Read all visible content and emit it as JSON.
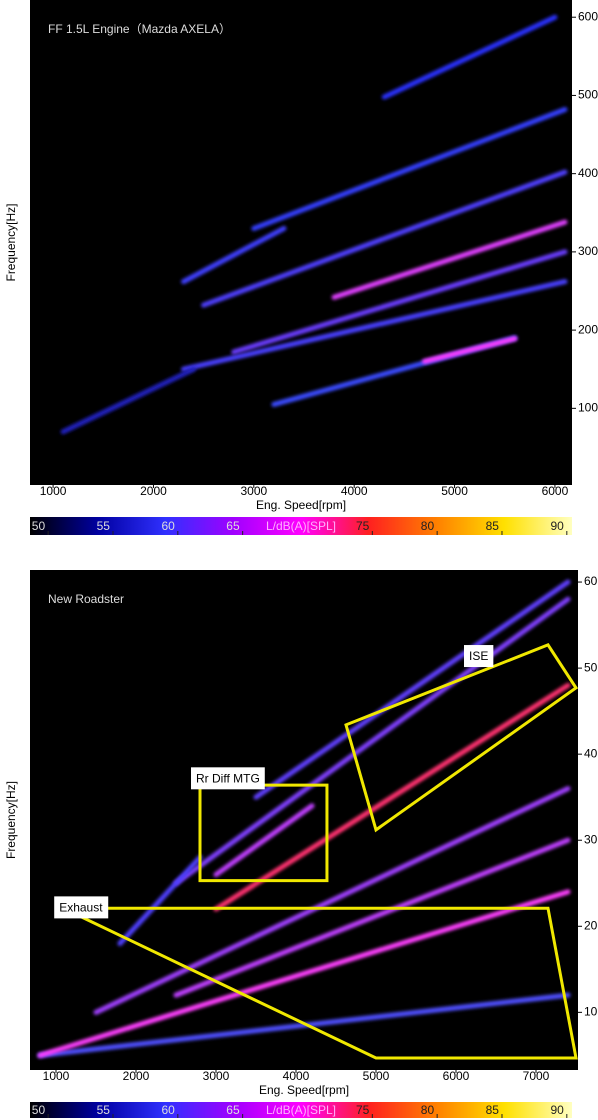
{
  "chart_data": [
    {
      "type": "spectrogram",
      "title": "FF 1.5L Engine（Mazda AXELA）",
      "xlabel": "Eng. Speed[rpm]",
      "ylabel": "Frequency[Hz]",
      "xlim": [
        770,
        6170
      ],
      "ylim": [
        2,
        622
      ],
      "xticks": [
        1000,
        2000,
        3000,
        4000,
        5000,
        6000
      ],
      "yticks": [
        100,
        200,
        300,
        400,
        500,
        600
      ],
      "series": [
        {
          "x": [
            3200,
            5600
          ],
          "values": [
            105,
            190
          ],
          "color": "#3a4cff"
        },
        {
          "x": [
            4700,
            5600
          ],
          "values": [
            160,
            189
          ],
          "color": "#ff3cff"
        },
        {
          "x": [
            2300,
            6100
          ],
          "values": [
            150,
            262
          ],
          "color": "#4a40ff"
        },
        {
          "x": [
            2800,
            6100
          ],
          "values": [
            172,
            300
          ],
          "color": "#6a3cff"
        },
        {
          "x": [
            3800,
            6100
          ],
          "values": [
            242,
            338
          ],
          "color": "#e040ff"
        },
        {
          "x": [
            2500,
            6100
          ],
          "values": [
            232,
            402
          ],
          "color": "#5040ff"
        },
        {
          "x": [
            3000,
            6100
          ],
          "values": [
            330,
            482
          ],
          "color": "#3440ff"
        },
        {
          "x": [
            4300,
            6000
          ],
          "values": [
            498,
            600
          ],
          "color": "#2a30ff"
        },
        {
          "x": [
            2300,
            3300
          ],
          "values": [
            262,
            330
          ],
          "color": "#4040ff"
        },
        {
          "x": [
            1100,
            2400
          ],
          "values": [
            70,
            150
          ],
          "color": "#2020c0"
        }
      ],
      "colorbar": {
        "clim": [
          48.6,
          90.4
        ],
        "ticks": [
          50,
          55,
          60,
          65,
          75,
          80,
          85,
          90
        ],
        "label": "L/dB(A)[SPL]",
        "colors": [
          "#000000",
          "#0000a0",
          "#3030ff",
          "#a000ff",
          "#ff00ff",
          "#ff2020",
          "#ff8000",
          "#ffe000",
          "#ffffc0"
        ]
      }
    },
    {
      "type": "spectrogram",
      "title": "New Roadster",
      "xlabel": "Eng. Speed[rpm]",
      "ylabel": "Frequency[Hz]",
      "xlim": [
        675,
        7525
      ],
      "ylim": [
        3.3,
        61.4
      ],
      "xticks": [
        1000,
        2000,
        3000,
        4000,
        5000,
        6000,
        7000
      ],
      "yticks": [
        10,
        20,
        30,
        40,
        50,
        60
      ],
      "series": [
        {
          "x": [
            800,
            7400
          ],
          "values": [
            5,
            12
          ],
          "color": "#5050ff"
        },
        {
          "x": [
            800,
            7400
          ],
          "values": [
            5,
            24
          ],
          "color": "#ff40ff"
        },
        {
          "x": [
            2500,
            7400
          ],
          "values": [
            12,
            30
          ],
          "color": "#c040ff"
        },
        {
          "x": [
            1500,
            7400
          ],
          "values": [
            10,
            36
          ],
          "color": "#a040ff"
        },
        {
          "x": [
            3000,
            7400
          ],
          "values": [
            22,
            48
          ],
          "color": "#ff3070"
        },
        {
          "x": [
            2500,
            7400
          ],
          "values": [
            25,
            58
          ],
          "color": "#8040ff"
        },
        {
          "x": [
            3500,
            7400
          ],
          "values": [
            35,
            60
          ],
          "color": "#6040ff"
        },
        {
          "x": [
            1800,
            2800
          ],
          "values": [
            18,
            28
          ],
          "color": "#5040ff"
        },
        {
          "x": [
            3000,
            4200
          ],
          "values": [
            26,
            34
          ],
          "color": "#c040ff"
        }
      ],
      "annotations": [
        {
          "text": "Exhaust",
          "x": [
            1090,
            7150,
            7500,
            5000
          ],
          "y": [
            22.1,
            22.1,
            4.7,
            4.7
          ]
        },
        {
          "text": "Rr Diff MTG",
          "x": [
            2800,
            4387,
            4387,
            2800
          ],
          "y": [
            36.4,
            36.4,
            25.3,
            25.3
          ]
        },
        {
          "text": "ISE",
          "x": [
            4625,
            7150,
            7500,
            5000
          ],
          "y": [
            43.4,
            52.7,
            47.7,
            31.2
          ]
        }
      ],
      "colorbar": {
        "clim": [
          48.6,
          90.4
        ],
        "ticks": [
          50,
          55,
          60,
          65,
          75,
          80,
          85,
          90
        ],
        "label": "L/dB(A)[SPL]",
        "colors": [
          "#000000",
          "#0000a0",
          "#3030ff",
          "#a000ff",
          "#ff00ff",
          "#ff2020",
          "#ff8000",
          "#ffe000",
          "#ffffc0"
        ]
      }
    }
  ]
}
